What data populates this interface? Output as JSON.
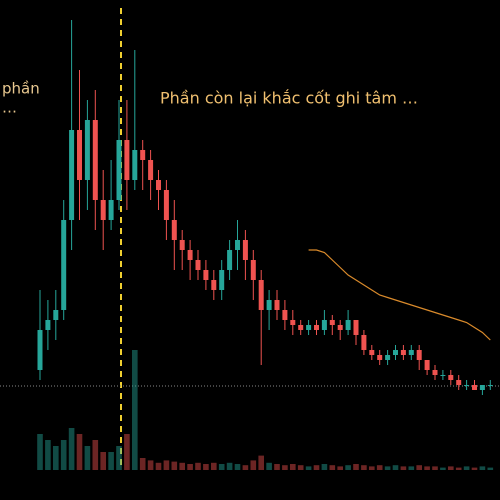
{
  "chart_data": {
    "type": "candlestick",
    "annotations": [
      "phần",
      "…",
      "Phần còn lại khắc cốt ghi tâm …"
    ],
    "open": [
      26,
      34,
      36,
      38,
      56,
      74,
      64,
      76,
      60,
      56,
      60,
      72,
      64,
      70,
      68,
      64,
      62,
      56,
      52,
      50,
      48,
      46,
      44,
      42,
      46,
      50,
      52,
      48,
      44,
      38,
      40,
      38,
      36,
      35,
      34,
      35,
      34,
      36,
      35,
      34,
      36,
      33,
      30,
      29,
      28,
      29,
      30,
      29,
      30,
      28,
      26,
      25,
      25,
      24,
      23,
      23,
      22,
      23
    ],
    "high": [
      42,
      40,
      42,
      60,
      96,
      86,
      80,
      82,
      66,
      68,
      80,
      80,
      90,
      72,
      70,
      66,
      64,
      60,
      54,
      52,
      50,
      48,
      46,
      48,
      52,
      56,
      54,
      50,
      46,
      42,
      42,
      40,
      38,
      36,
      36,
      36,
      38,
      37,
      36,
      38,
      36,
      34,
      31,
      30,
      30,
      31,
      31,
      31,
      31,
      28,
      27,
      26,
      26,
      25,
      24,
      24,
      23,
      24
    ],
    "low": [
      24,
      30,
      32,
      36,
      50,
      56,
      58,
      54,
      50,
      54,
      58,
      58,
      62,
      62,
      60,
      58,
      52,
      46,
      46,
      44,
      44,
      42,
      40,
      40,
      44,
      46,
      44,
      40,
      27,
      34,
      36,
      34,
      33,
      33,
      33,
      33,
      33,
      33,
      32,
      33,
      31,
      29,
      28,
      27,
      27,
      28,
      28,
      28,
      26,
      25,
      24,
      24,
      23,
      22,
      22,
      22,
      21,
      22
    ],
    "close": [
      34,
      36,
      38,
      56,
      74,
      64,
      76,
      60,
      56,
      60,
      72,
      64,
      70,
      68,
      64,
      62,
      56,
      52,
      50,
      48,
      46,
      44,
      42,
      46,
      50,
      52,
      48,
      44,
      38,
      40,
      38,
      36,
      35,
      34,
      35,
      34,
      36,
      35,
      34,
      36,
      33,
      30,
      29,
      28,
      29,
      30,
      29,
      30,
      28,
      26,
      25,
      25,
      24,
      23,
      23,
      22,
      23,
      23
    ],
    "volume": [
      30,
      25,
      20,
      25,
      35,
      30,
      20,
      25,
      15,
      15,
      20,
      30,
      100,
      10,
      8,
      6,
      8,
      7,
      6,
      5,
      6,
      5,
      6,
      5,
      6,
      5,
      4,
      8,
      12,
      6,
      5,
      4,
      5,
      4,
      3,
      4,
      5,
      4,
      3,
      4,
      5,
      4,
      3,
      4,
      3,
      4,
      3,
      3,
      4,
      3,
      3,
      2,
      3,
      2,
      3,
      2,
      3,
      2
    ],
    "ma": [
      null,
      null,
      null,
      null,
      null,
      null,
      null,
      null,
      null,
      null,
      null,
      null,
      null,
      null,
      null,
      null,
      null,
      null,
      null,
      null,
      null,
      null,
      null,
      null,
      null,
      null,
      null,
      null,
      null,
      null,
      null,
      null,
      null,
      null,
      50,
      50,
      49.5,
      48,
      46.5,
      45,
      44,
      43,
      42,
      41,
      40.5,
      40,
      39.5,
      39,
      38.5,
      38,
      37.5,
      37,
      36.5,
      36,
      35.5,
      34.5,
      33.5,
      32
    ],
    "up_color": "#26a69a",
    "down_color": "#ef5350",
    "ma_color": "#d98a2b",
    "price_line": 22.8,
    "ylim": [
      0,
      100
    ],
    "y2lim": [
      0,
      100
    ]
  }
}
